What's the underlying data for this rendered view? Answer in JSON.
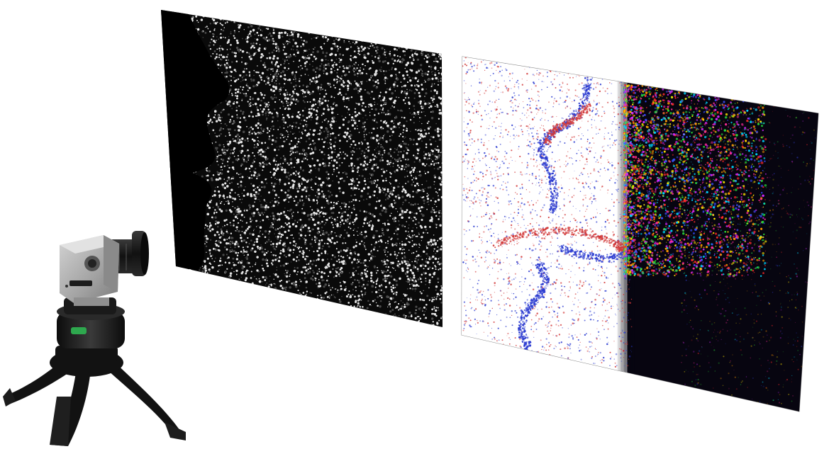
{
  "scene": {
    "background": "#ffffff",
    "speckle_panel": {
      "icon": "speckle-pattern-panel",
      "background_color": "#0a0a0a",
      "speckle_light_color": "#e6e6e6",
      "speckle_dark_color": "#4a4a4a",
      "silhouette_color": "#000000",
      "silhouette_shape": "face-profile"
    },
    "flow_panel": {
      "icon": "flow-visualization-panel",
      "light_region_color": "#ffffff",
      "dark_region_color": "#070510",
      "positive_particle_color": "#d23a3a",
      "negative_particle_color": "#2a3ad0",
      "trace_colors": [
        "#ff2a2a",
        "#ff9a00",
        "#ffe600",
        "#2adf3a",
        "#00d6ff",
        "#3a4dff",
        "#d22aff",
        "#ff2a9a"
      ]
    },
    "camera": {
      "icon": "camera-on-tripod",
      "body_color": "#a7a7a7",
      "lens_color": "#1a1a1a",
      "tripod_color": "#121212",
      "accent_color": "#2ea84e"
    }
  }
}
